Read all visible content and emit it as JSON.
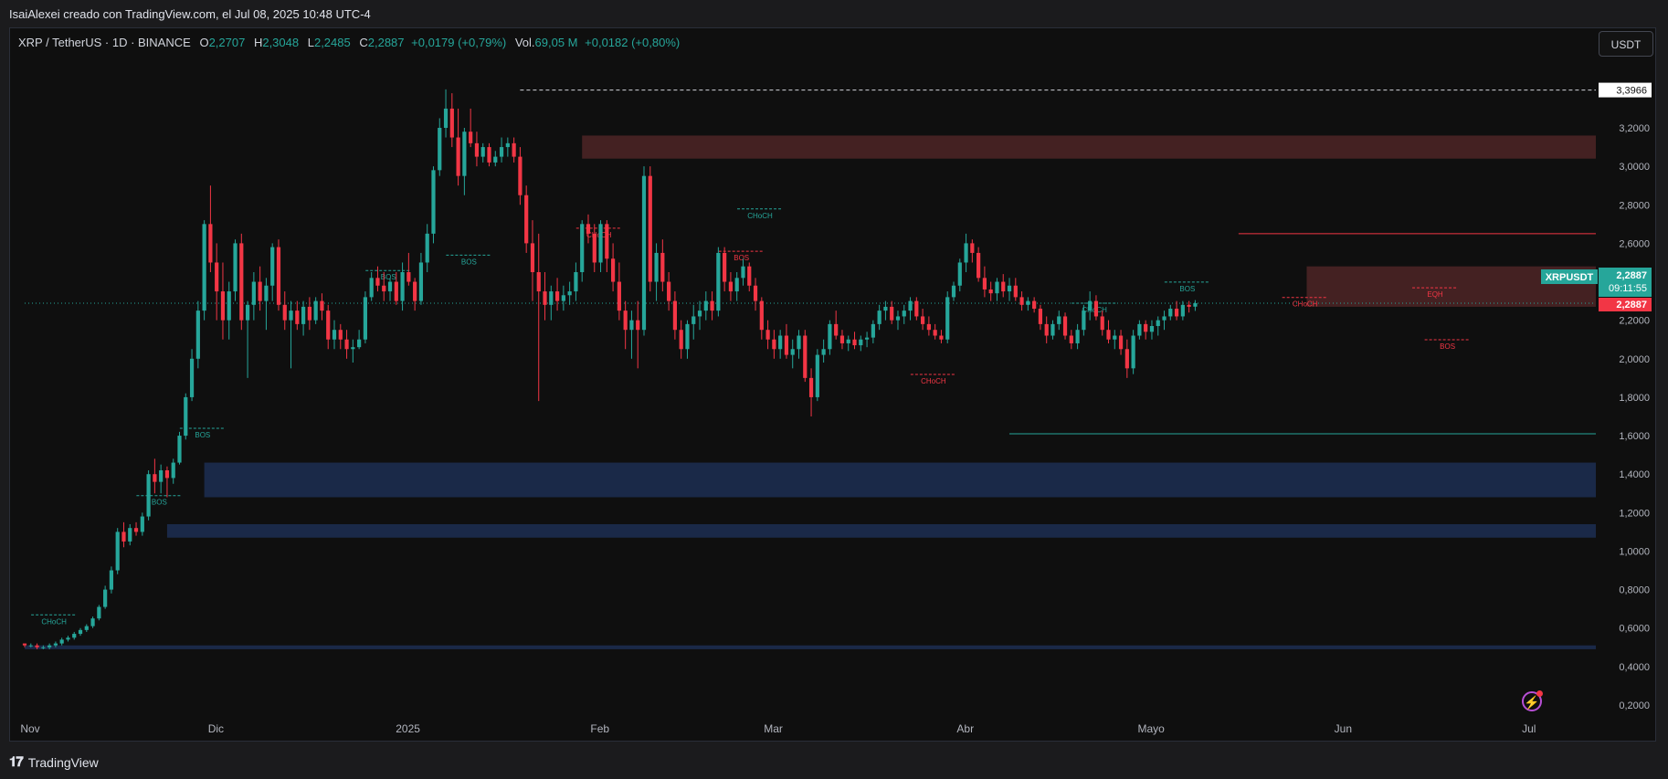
{
  "caption": "IsaiAlexei creado con TradingView.com, el Jul 08, 2025 10:48 UTC-4",
  "legend": {
    "symbol": "XRP / TetherUS · 1D · BINANCE",
    "o_label": "O",
    "o_value": "2,2707",
    "h_label": "H",
    "h_value": "2,3048",
    "l_label": "L",
    "l_value": "2,2485",
    "c_label": "C",
    "c_value": "2,2887",
    "change": "+0,0179 (+0,79%)",
    "vol_label": "Vol.",
    "vol_value": "69,05 M",
    "vol_change": "+0,0182 (+0,80%)"
  },
  "currency_button": "USDT",
  "footer_brand": "TradingView",
  "colors": {
    "up": "#26a69a",
    "down": "#f23645",
    "supply": "#4a2325",
    "demand": "#1c2c4f"
  },
  "chart_data": {
    "type": "candlestick",
    "ylim": [
      0.1,
      3.5
    ],
    "y_ticks": [
      "3,2000",
      "3,0000",
      "2,8000",
      "2,6000",
      "2,4000",
      "2,2000",
      "2,0000",
      "1,8000",
      "1,6000",
      "1,4000",
      "1,2000",
      "1,0000",
      "0,8000",
      "0,6000",
      "0,4000",
      "0,2000"
    ],
    "y_tick_values": [
      3.2,
      3.0,
      2.8,
      2.6,
      2.4,
      2.2,
      2.0,
      1.8,
      1.6,
      1.4,
      1.2,
      1.0,
      0.8,
      0.6,
      0.4,
      0.2
    ],
    "x_labels": [
      {
        "label": "Nov",
        "day": 0
      },
      {
        "label": "Dic",
        "day": 30
      },
      {
        "label": "2025",
        "day": 61
      },
      {
        "label": "Feb",
        "day": 92
      },
      {
        "label": "Mar",
        "day": 120
      },
      {
        "label": "Abr",
        "day": 151
      },
      {
        "label": "Mayo",
        "day": 181
      },
      {
        "label": "Jun",
        "day": 212
      },
      {
        "label": "Jul",
        "day": 242
      }
    ],
    "price_labels": [
      {
        "text": "3,3966",
        "value": 3.3966,
        "style": "white"
      },
      {
        "text": "XRPUSDT",
        "value": 2.4,
        "style": "symbol"
      },
      {
        "text": "2,2887",
        "value": 2.2887,
        "style": "last"
      },
      {
        "text": "09:11:55",
        "value": 2.2887,
        "style": "timer"
      },
      {
        "text": "2,2887",
        "value": 2.2887,
        "style": "close"
      }
    ],
    "zones": [
      {
        "type": "supply",
        "from_day": 90,
        "to_day": 260,
        "low": 3.04,
        "high": 3.16
      },
      {
        "type": "supply",
        "from_day": 207,
        "to_day": 260,
        "low": 2.27,
        "high": 2.48
      },
      {
        "type": "demand",
        "from_day": 29,
        "to_day": 260,
        "low": 1.28,
        "high": 1.46
      },
      {
        "type": "demand",
        "from_day": 23,
        "to_day": 260,
        "low": 1.07,
        "high": 1.14
      },
      {
        "type": "demand",
        "from_day": 0,
        "to_day": 260,
        "low": 0.49,
        "high": 0.51
      }
    ],
    "levels": [
      {
        "day_from": 80,
        "day_to": 260,
        "value": 3.3966,
        "style": "dash-white"
      },
      {
        "day_from": 196,
        "day_to": 260,
        "value": 2.65,
        "style": "solid-red"
      },
      {
        "day_from": 159,
        "day_to": 260,
        "value": 1.61,
        "style": "solid-green"
      },
      {
        "day_from": 0,
        "day_to": 260,
        "value": 2.2887,
        "style": "dot-green"
      }
    ],
    "structure_labels": [
      {
        "text": "CHoCH",
        "day": 4,
        "value": 0.64,
        "color": "up"
      },
      {
        "text": "BOS",
        "day": 21,
        "value": 1.26,
        "color": "up"
      },
      {
        "text": "BOS",
        "day": 28,
        "value": 1.61,
        "color": "up"
      },
      {
        "text": "BOS",
        "day": 58,
        "value": 2.43,
        "color": "up"
      },
      {
        "text": "BOS",
        "day": 71,
        "value": 2.51,
        "color": "up"
      },
      {
        "text": "CHoCH",
        "day": 92,
        "value": 2.65,
        "color": "down"
      },
      {
        "text": "CHoCH",
        "day": 118,
        "value": 2.75,
        "color": "up"
      },
      {
        "text": "BOS",
        "day": 115,
        "value": 2.53,
        "color": "down"
      },
      {
        "text": "CHoCH",
        "day": 146,
        "value": 1.89,
        "color": "down"
      },
      {
        "text": "CHoCH",
        "day": 172,
        "value": 2.26,
        "color": "up"
      },
      {
        "text": "BOS",
        "day": 187,
        "value": 2.37,
        "color": "up"
      },
      {
        "text": "CHoCH",
        "day": 206,
        "value": 2.29,
        "color": "down"
      },
      {
        "text": "EQH",
        "day": 227,
        "value": 2.34,
        "color": "down"
      },
      {
        "text": "BOS",
        "day": 229,
        "value": 2.07,
        "color": "down"
      }
    ],
    "candles": [
      [
        0.52,
        0.52,
        0.5,
        0.51
      ],
      [
        0.51,
        0.52,
        0.5,
        0.51
      ],
      [
        0.51,
        0.52,
        0.49,
        0.5
      ],
      [
        0.5,
        0.51,
        0.49,
        0.5
      ],
      [
        0.5,
        0.52,
        0.49,
        0.51
      ],
      [
        0.51,
        0.53,
        0.5,
        0.52
      ],
      [
        0.52,
        0.55,
        0.51,
        0.54
      ],
      [
        0.54,
        0.56,
        0.53,
        0.55
      ],
      [
        0.55,
        0.58,
        0.54,
        0.57
      ],
      [
        0.57,
        0.6,
        0.56,
        0.59
      ],
      [
        0.59,
        0.62,
        0.58,
        0.61
      ],
      [
        0.61,
        0.66,
        0.6,
        0.65
      ],
      [
        0.65,
        0.72,
        0.64,
        0.71
      ],
      [
        0.71,
        0.82,
        0.7,
        0.8
      ],
      [
        0.8,
        0.92,
        0.78,
        0.9
      ],
      [
        0.9,
        1.12,
        0.88,
        1.1
      ],
      [
        1.1,
        1.15,
        1.02,
        1.05
      ],
      [
        1.05,
        1.14,
        1.03,
        1.12
      ],
      [
        1.12,
        1.15,
        1.08,
        1.1
      ],
      [
        1.1,
        1.2,
        1.08,
        1.18
      ],
      [
        1.18,
        1.42,
        1.16,
        1.4
      ],
      [
        1.4,
        1.48,
        1.3,
        1.36
      ],
      [
        1.36,
        1.45,
        1.3,
        1.42
      ],
      [
        1.42,
        1.44,
        1.28,
        1.38
      ],
      [
        1.38,
        1.48,
        1.35,
        1.46
      ],
      [
        1.46,
        1.62,
        1.45,
        1.6
      ],
      [
        1.6,
        1.82,
        1.58,
        1.8
      ],
      [
        1.8,
        2.05,
        1.78,
        2.0
      ],
      [
        2.0,
        2.3,
        1.95,
        2.25
      ],
      [
        2.25,
        2.72,
        2.2,
        2.7
      ],
      [
        2.7,
        2.9,
        2.45,
        2.5
      ],
      [
        2.5,
        2.6,
        2.2,
        2.35
      ],
      [
        2.35,
        2.5,
        2.1,
        2.2
      ],
      [
        2.2,
        2.4,
        2.1,
        2.35
      ],
      [
        2.35,
        2.62,
        2.3,
        2.6
      ],
      [
        2.6,
        2.65,
        2.15,
        2.2
      ],
      [
        2.2,
        2.3,
        1.9,
        2.28
      ],
      [
        2.28,
        2.45,
        2.2,
        2.4
      ],
      [
        2.4,
        2.48,
        2.25,
        2.3
      ],
      [
        2.3,
        2.42,
        2.15,
        2.38
      ],
      [
        2.38,
        2.6,
        2.3,
        2.58
      ],
      [
        2.58,
        2.62,
        2.25,
        2.28
      ],
      [
        2.28,
        2.35,
        2.15,
        2.2
      ],
      [
        2.2,
        2.3,
        1.95,
        2.25
      ],
      [
        2.25,
        2.3,
        2.15,
        2.18
      ],
      [
        2.18,
        2.3,
        2.12,
        2.27
      ],
      [
        2.27,
        2.32,
        2.15,
        2.2
      ],
      [
        2.2,
        2.32,
        2.18,
        2.3
      ],
      [
        2.3,
        2.34,
        2.2,
        2.25
      ],
      [
        2.25,
        2.28,
        2.05,
        2.1
      ],
      [
        2.1,
        2.2,
        2.05,
        2.15
      ],
      [
        2.15,
        2.18,
        2.05,
        2.1
      ],
      [
        2.1,
        2.15,
        2.0,
        2.05
      ],
      [
        2.05,
        2.1,
        1.98,
        2.06
      ],
      [
        2.06,
        2.15,
        2.05,
        2.1
      ],
      [
        2.1,
        2.35,
        2.08,
        2.32
      ],
      [
        2.32,
        2.45,
        2.3,
        2.42
      ],
      [
        2.42,
        2.48,
        2.35,
        2.38
      ],
      [
        2.38,
        2.45,
        2.3,
        2.35
      ],
      [
        2.35,
        2.42,
        2.3,
        2.4
      ],
      [
        2.4,
        2.45,
        2.28,
        2.3
      ],
      [
        2.3,
        2.5,
        2.25,
        2.45
      ],
      [
        2.45,
        2.55,
        2.38,
        2.4
      ],
      [
        2.4,
        2.42,
        2.25,
        2.3
      ],
      [
        2.3,
        2.55,
        2.28,
        2.5
      ],
      [
        2.5,
        2.7,
        2.45,
        2.65
      ],
      [
        2.65,
        3.0,
        2.6,
        2.98
      ],
      [
        2.98,
        3.25,
        2.95,
        3.2
      ],
      [
        3.2,
        3.4,
        3.15,
        3.3
      ],
      [
        3.3,
        3.38,
        3.1,
        3.15
      ],
      [
        3.15,
        3.3,
        2.9,
        2.95
      ],
      [
        2.95,
        3.2,
        2.85,
        3.18
      ],
      [
        3.18,
        3.3,
        3.1,
        3.12
      ],
      [
        3.12,
        3.18,
        3.0,
        3.05
      ],
      [
        3.05,
        3.12,
        3.02,
        3.1
      ],
      [
        3.1,
        3.12,
        3.0,
        3.02
      ],
      [
        3.02,
        3.08,
        3.0,
        3.05
      ],
      [
        3.05,
        3.15,
        3.02,
        3.1
      ],
      [
        3.1,
        3.15,
        3.05,
        3.12
      ],
      [
        3.12,
        3.15,
        3.02,
        3.05
      ],
      [
        3.05,
        3.1,
        2.8,
        2.85
      ],
      [
        2.85,
        2.9,
        2.55,
        2.6
      ],
      [
        2.6,
        2.72,
        2.3,
        2.45
      ],
      [
        2.45,
        2.65,
        1.78,
        2.35
      ],
      [
        2.35,
        2.45,
        2.2,
        2.28
      ],
      [
        2.28,
        2.38,
        2.2,
        2.35
      ],
      [
        2.35,
        2.42,
        2.25,
        2.3
      ],
      [
        2.3,
        2.38,
        2.25,
        2.33
      ],
      [
        2.33,
        2.4,
        2.28,
        2.35
      ],
      [
        2.35,
        2.5,
        2.3,
        2.45
      ],
      [
        2.45,
        2.72,
        2.4,
        2.7
      ],
      [
        2.7,
        2.75,
        2.6,
        2.65
      ],
      [
        2.65,
        2.7,
        2.45,
        2.5
      ],
      [
        2.5,
        2.72,
        2.45,
        2.7
      ],
      [
        2.7,
        2.72,
        2.45,
        2.52
      ],
      [
        2.52,
        2.6,
        2.35,
        2.4
      ],
      [
        2.4,
        2.5,
        2.2,
        2.25
      ],
      [
        2.25,
        2.3,
        2.05,
        2.15
      ],
      [
        2.15,
        2.25,
        2.0,
        2.2
      ],
      [
        2.2,
        2.3,
        1.95,
        2.15
      ],
      [
        2.15,
        3.0,
        2.12,
        2.95
      ],
      [
        2.95,
        3.0,
        2.35,
        2.4
      ],
      [
        2.4,
        2.6,
        2.3,
        2.55
      ],
      [
        2.55,
        2.62,
        2.35,
        2.4
      ],
      [
        2.4,
        2.45,
        2.25,
        2.3
      ],
      [
        2.3,
        2.35,
        2.1,
        2.15
      ],
      [
        2.15,
        2.2,
        2.0,
        2.05
      ],
      [
        2.05,
        2.2,
        2.0,
        2.18
      ],
      [
        2.18,
        2.28,
        2.1,
        2.22
      ],
      [
        2.22,
        2.3,
        2.15,
        2.25
      ],
      [
        2.25,
        2.35,
        2.2,
        2.3
      ],
      [
        2.3,
        2.35,
        2.2,
        2.25
      ],
      [
        2.25,
        2.58,
        2.22,
        2.55
      ],
      [
        2.55,
        2.58,
        2.35,
        2.4
      ],
      [
        2.4,
        2.45,
        2.3,
        2.35
      ],
      [
        2.35,
        2.45,
        2.3,
        2.42
      ],
      [
        2.42,
        2.52,
        2.38,
        2.48
      ],
      [
        2.48,
        2.5,
        2.35,
        2.38
      ],
      [
        2.38,
        2.42,
        2.25,
        2.3
      ],
      [
        2.3,
        2.32,
        2.1,
        2.15
      ],
      [
        2.15,
        2.2,
        2.05,
        2.1
      ],
      [
        2.1,
        2.15,
        2.0,
        2.05
      ],
      [
        2.05,
        2.15,
        2.0,
        2.12
      ],
      [
        2.12,
        2.18,
        2.0,
        2.02
      ],
      [
        2.02,
        2.1,
        1.95,
        2.05
      ],
      [
        2.05,
        2.15,
        2.0,
        2.12
      ],
      [
        2.12,
        2.15,
        1.88,
        1.9
      ],
      [
        1.9,
        1.95,
        1.7,
        1.8
      ],
      [
        1.8,
        2.05,
        1.78,
        2.02
      ],
      [
        2.02,
        2.1,
        1.98,
        2.05
      ],
      [
        2.05,
        2.2,
        2.02,
        2.18
      ],
      [
        2.18,
        2.25,
        2.1,
        2.12
      ],
      [
        2.12,
        2.15,
        2.05,
        2.08
      ],
      [
        2.08,
        2.12,
        2.04,
        2.1
      ],
      [
        2.1,
        2.14,
        2.05,
        2.07
      ],
      [
        2.07,
        2.12,
        2.04,
        2.1
      ],
      [
        2.1,
        2.14,
        2.06,
        2.11
      ],
      [
        2.11,
        2.2,
        2.08,
        2.18
      ],
      [
        2.18,
        2.28,
        2.15,
        2.25
      ],
      [
        2.25,
        2.3,
        2.2,
        2.27
      ],
      [
        2.27,
        2.3,
        2.18,
        2.2
      ],
      [
        2.2,
        2.25,
        2.15,
        2.22
      ],
      [
        2.22,
        2.28,
        2.18,
        2.25
      ],
      [
        2.25,
        2.32,
        2.2,
        2.3
      ],
      [
        2.3,
        2.32,
        2.2,
        2.22
      ],
      [
        2.22,
        2.26,
        2.15,
        2.18
      ],
      [
        2.18,
        2.22,
        2.12,
        2.15
      ],
      [
        2.15,
        2.18,
        2.1,
        2.12
      ],
      [
        2.12,
        2.15,
        2.08,
        2.1
      ],
      [
        2.1,
        2.35,
        2.08,
        2.32
      ],
      [
        2.32,
        2.4,
        2.3,
        2.38
      ],
      [
        2.38,
        2.52,
        2.35,
        2.5
      ],
      [
        2.5,
        2.65,
        2.45,
        2.6
      ],
      [
        2.6,
        2.62,
        2.5,
        2.55
      ],
      [
        2.55,
        2.58,
        2.4,
        2.42
      ],
      [
        2.42,
        2.48,
        2.32,
        2.36
      ],
      [
        2.36,
        2.4,
        2.3,
        2.34
      ],
      [
        2.34,
        2.42,
        2.3,
        2.4
      ],
      [
        2.4,
        2.44,
        2.32,
        2.35
      ],
      [
        2.35,
        2.42,
        2.3,
        2.38
      ],
      [
        2.38,
        2.42,
        2.3,
        2.32
      ],
      [
        2.32,
        2.35,
        2.25,
        2.28
      ],
      [
        2.28,
        2.32,
        2.25,
        2.3
      ],
      [
        2.3,
        2.32,
        2.24,
        2.26
      ],
      [
        2.26,
        2.28,
        2.15,
        2.18
      ],
      [
        2.18,
        2.22,
        2.08,
        2.12
      ],
      [
        2.12,
        2.2,
        2.1,
        2.18
      ],
      [
        2.18,
        2.25,
        2.15,
        2.22
      ],
      [
        2.22,
        2.24,
        2.1,
        2.12
      ],
      [
        2.12,
        2.15,
        2.05,
        2.08
      ],
      [
        2.08,
        2.18,
        2.05,
        2.15
      ],
      [
        2.15,
        2.28,
        2.12,
        2.25
      ],
      [
        2.25,
        2.35,
        2.2,
        2.3
      ],
      [
        2.3,
        2.33,
        2.2,
        2.22
      ],
      [
        2.22,
        2.25,
        2.12,
        2.15
      ],
      [
        2.15,
        2.2,
        2.08,
        2.1
      ],
      [
        2.1,
        2.15,
        2.05,
        2.12
      ],
      [
        2.12,
        2.15,
        2.02,
        2.05
      ],
      [
        2.05,
        2.1,
        1.9,
        1.95
      ],
      [
        1.95,
        2.15,
        1.92,
        2.12
      ],
      [
        2.12,
        2.2,
        2.1,
        2.18
      ],
      [
        2.18,
        2.2,
        2.1,
        2.14
      ],
      [
        2.14,
        2.2,
        2.1,
        2.17
      ],
      [
        2.17,
        2.22,
        2.12,
        2.2
      ],
      [
        2.2,
        2.25,
        2.15,
        2.22
      ],
      [
        2.22,
        2.28,
        2.2,
        2.26
      ],
      [
        2.26,
        2.3,
        2.2,
        2.22
      ],
      [
        2.22,
        2.3,
        2.2,
        2.28
      ],
      [
        2.28,
        2.3,
        2.24,
        2.27
      ],
      [
        2.2707,
        2.3048,
        2.2485,
        2.2887
      ]
    ]
  }
}
